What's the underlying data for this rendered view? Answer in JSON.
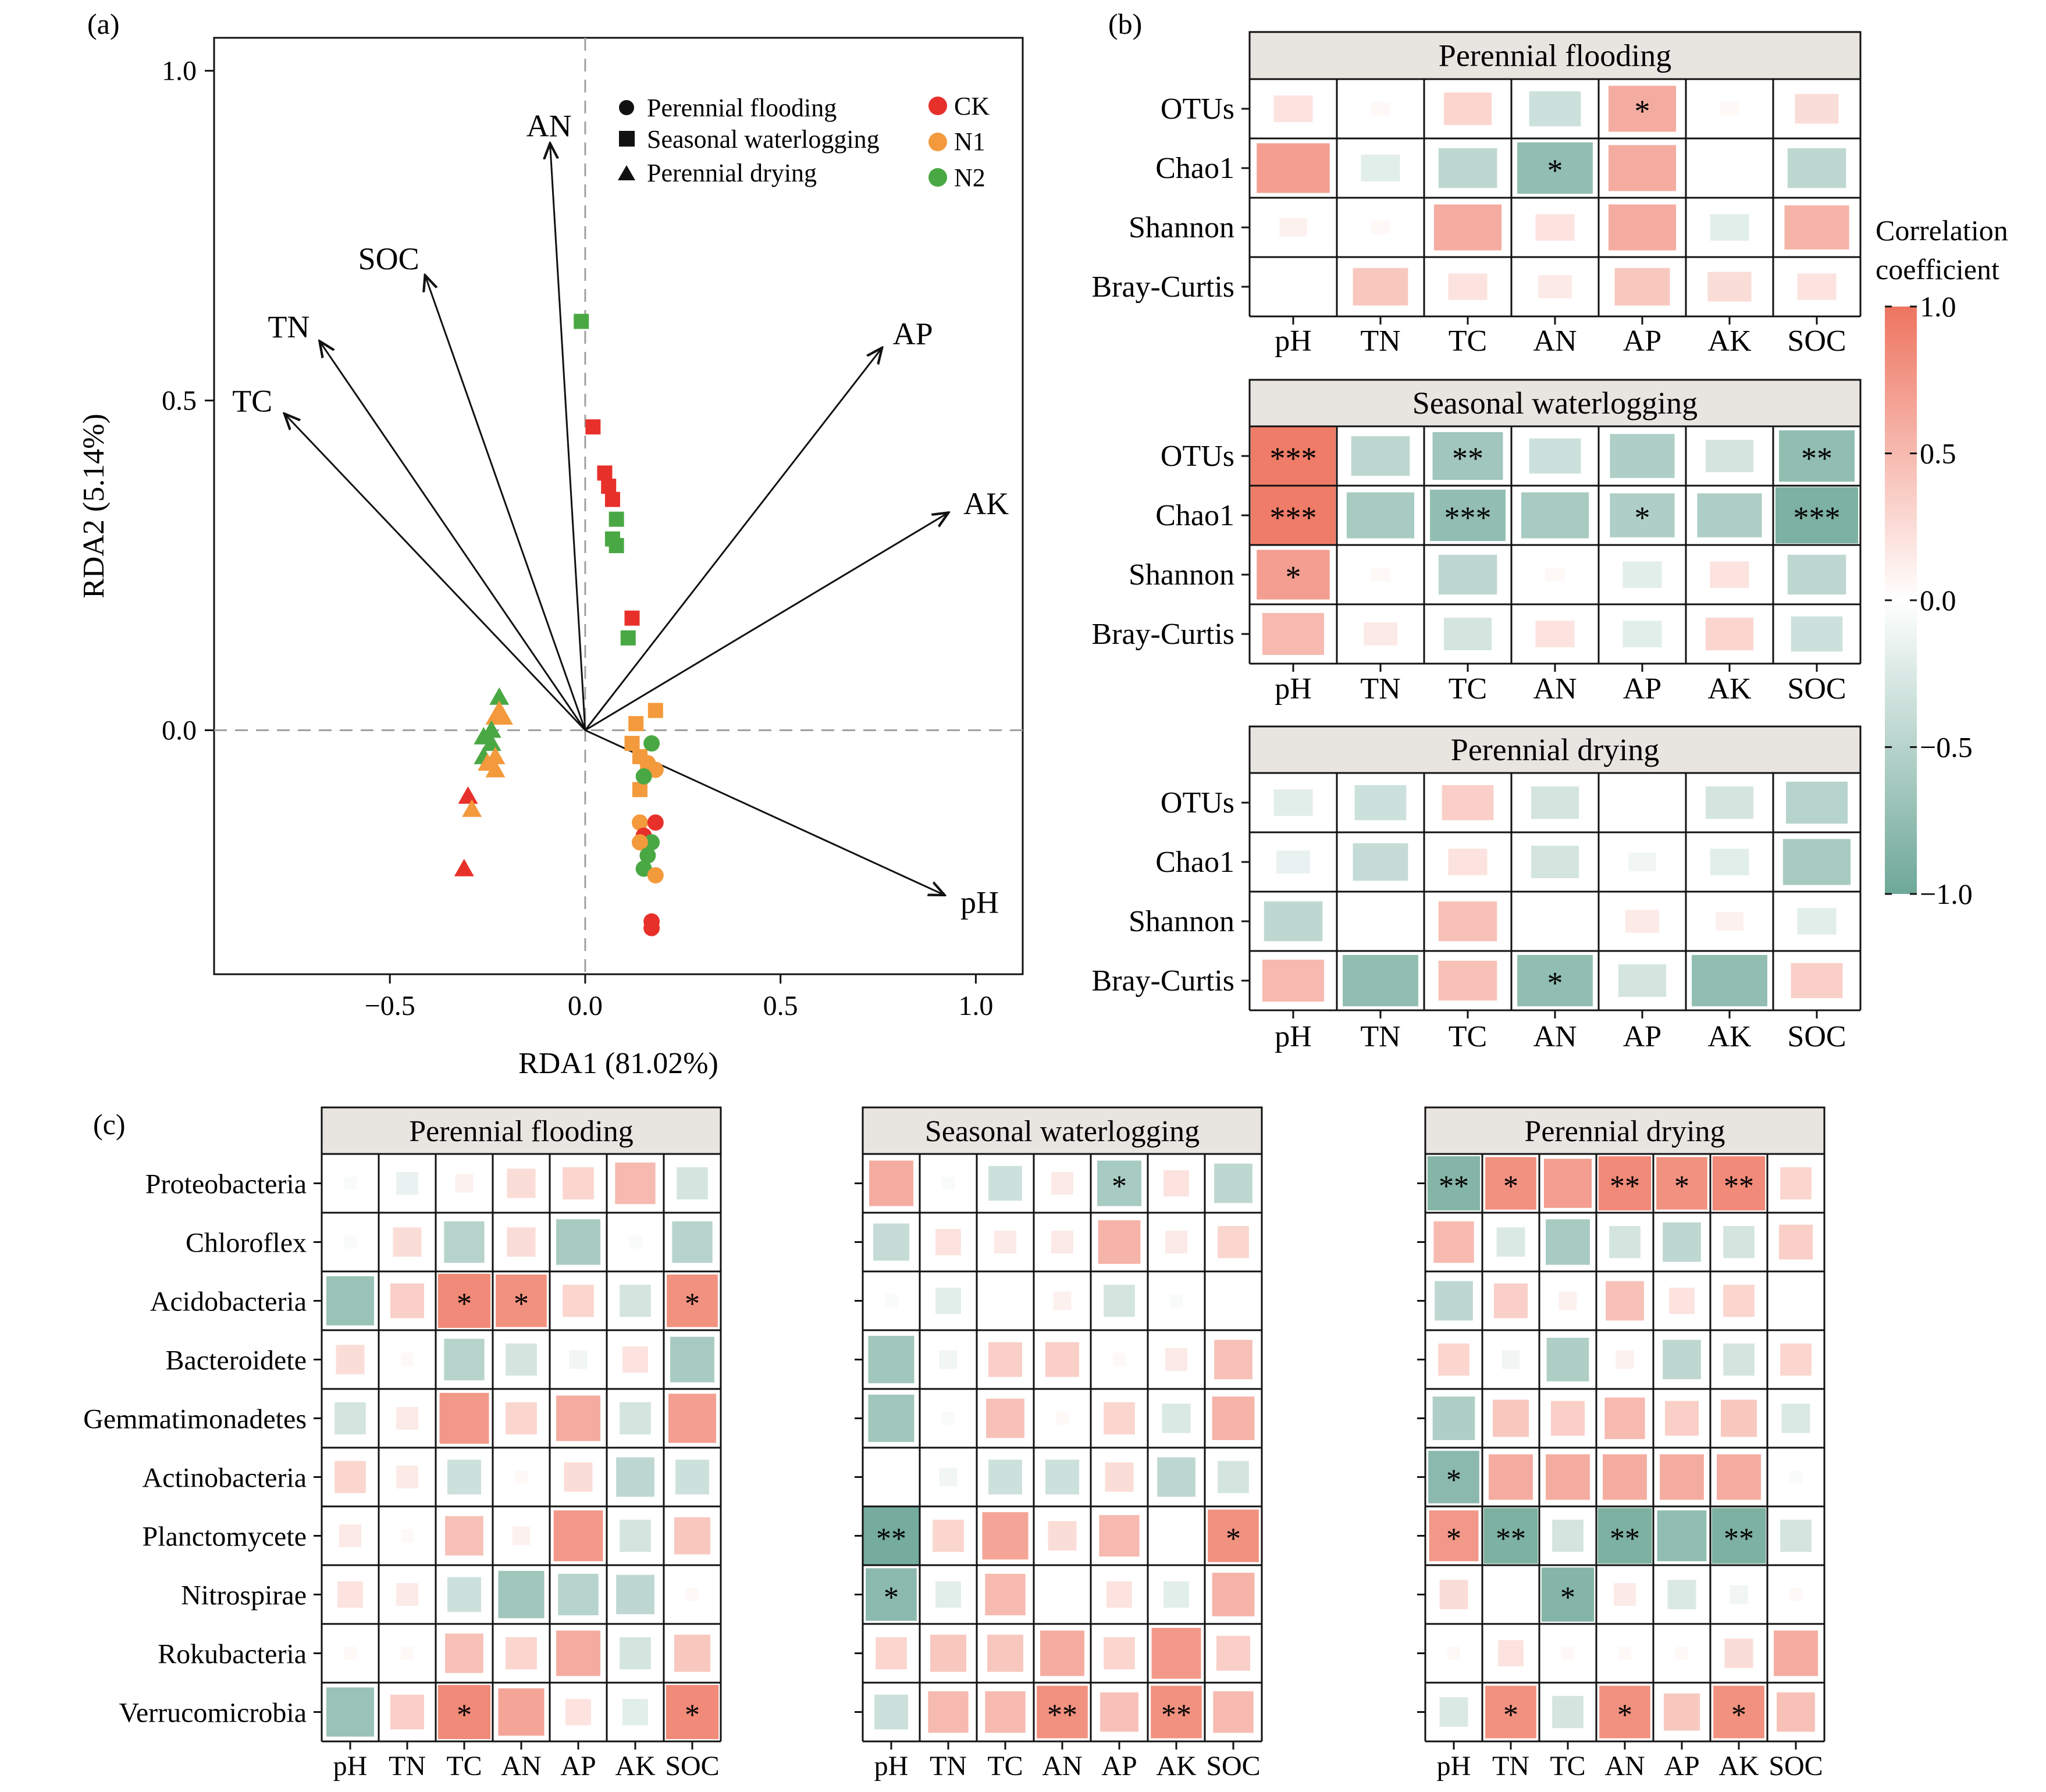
{
  "panel_labels": {
    "a": "(a)",
    "b": "(b)",
    "c": "(c)"
  },
  "colors": {
    "ck": "#e8302a",
    "n1": "#f39a3c",
    "n2": "#4aa844",
    "pos": "#ee7560",
    "neg": "#6ea898",
    "strip_bg": "#e8e4e0",
    "dashed": "#a0a0a0"
  },
  "rda": {
    "xlabel": "RDA1 (81.02%)",
    "ylabel": "RDA2 (5.14%)",
    "xlim": [
      -0.95,
      1.12
    ],
    "ylim": [
      -0.37,
      1.05
    ],
    "xticks": [
      -0.5,
      0.0,
      0.5,
      1.0
    ],
    "xtick_labels": [
      "−0.5",
      "0.0",
      "0.5",
      "1.0"
    ],
    "yticks": [
      0.0,
      0.5,
      1.0
    ],
    "ytick_labels": [
      "0.0",
      "0.5",
      "1.0"
    ],
    "arrows": [
      {
        "label": "AN",
        "x": -0.09,
        "y": 0.89
      },
      {
        "label": "SOC",
        "x": -0.41,
        "y": 0.69
      },
      {
        "label": "TN",
        "x": -0.68,
        "y": 0.59
      },
      {
        "label": "TC",
        "x": -0.77,
        "y": 0.48
      },
      {
        "label": "AP",
        "x": 0.76,
        "y": 0.58
      },
      {
        "label": "AK",
        "x": 0.93,
        "y": 0.33
      },
      {
        "label": "pH",
        "x": 0.92,
        "y": -0.25
      }
    ],
    "legend_shapes": [
      {
        "shape": "circle",
        "label": "Perennial flooding"
      },
      {
        "shape": "square",
        "label": "Seasonal waterlogging"
      },
      {
        "shape": "triangle",
        "label": "Perennial drying"
      }
    ],
    "legend_groups": [
      {
        "label": "CK",
        "color": "ck"
      },
      {
        "label": "N1",
        "color": "n1"
      },
      {
        "label": "N2",
        "color": "n2"
      }
    ],
    "points": [
      {
        "x": -0.01,
        "y": 0.62,
        "shape": "square",
        "group": "N2"
      },
      {
        "x": 0.02,
        "y": 0.46,
        "shape": "square",
        "group": "CK"
      },
      {
        "x": 0.05,
        "y": 0.39,
        "shape": "square",
        "group": "CK"
      },
      {
        "x": 0.06,
        "y": 0.37,
        "shape": "square",
        "group": "CK"
      },
      {
        "x": 0.07,
        "y": 0.35,
        "shape": "square",
        "group": "CK"
      },
      {
        "x": 0.08,
        "y": 0.32,
        "shape": "square",
        "group": "N2"
      },
      {
        "x": 0.07,
        "y": 0.29,
        "shape": "square",
        "group": "N2"
      },
      {
        "x": 0.08,
        "y": 0.28,
        "shape": "square",
        "group": "N2"
      },
      {
        "x": 0.12,
        "y": 0.17,
        "shape": "square",
        "group": "CK"
      },
      {
        "x": 0.11,
        "y": 0.14,
        "shape": "square",
        "group": "N2"
      },
      {
        "x": 0.18,
        "y": 0.03,
        "shape": "square",
        "group": "N1"
      },
      {
        "x": 0.13,
        "y": 0.01,
        "shape": "square",
        "group": "N1"
      },
      {
        "x": 0.12,
        "y": -0.02,
        "shape": "square",
        "group": "N1"
      },
      {
        "x": 0.14,
        "y": -0.04,
        "shape": "square",
        "group": "N1"
      },
      {
        "x": 0.16,
        "y": -0.06,
        "shape": "square",
        "group": "N1"
      },
      {
        "x": 0.14,
        "y": -0.09,
        "shape": "square",
        "group": "N1"
      },
      {
        "x": 0.17,
        "y": -0.02,
        "shape": "circle",
        "group": "N2"
      },
      {
        "x": 0.16,
        "y": -0.05,
        "shape": "circle",
        "group": "N1"
      },
      {
        "x": 0.18,
        "y": -0.06,
        "shape": "circle",
        "group": "N1"
      },
      {
        "x": 0.15,
        "y": -0.07,
        "shape": "circle",
        "group": "N2"
      },
      {
        "x": 0.14,
        "y": -0.14,
        "shape": "circle",
        "group": "N1"
      },
      {
        "x": 0.18,
        "y": -0.14,
        "shape": "circle",
        "group": "CK"
      },
      {
        "x": 0.15,
        "y": -0.16,
        "shape": "circle",
        "group": "CK"
      },
      {
        "x": 0.17,
        "y": -0.17,
        "shape": "circle",
        "group": "N2"
      },
      {
        "x": 0.14,
        "y": -0.17,
        "shape": "circle",
        "group": "N1"
      },
      {
        "x": 0.16,
        "y": -0.19,
        "shape": "circle",
        "group": "N2"
      },
      {
        "x": 0.15,
        "y": -0.21,
        "shape": "circle",
        "group": "N2"
      },
      {
        "x": 0.18,
        "y": -0.22,
        "shape": "circle",
        "group": "N1"
      },
      {
        "x": 0.17,
        "y": -0.29,
        "shape": "circle",
        "group": "CK"
      },
      {
        "x": 0.17,
        "y": -0.3,
        "shape": "circle",
        "group": "CK"
      },
      {
        "x": -0.22,
        "y": 0.05,
        "shape": "triangle",
        "group": "N2"
      },
      {
        "x": -0.22,
        "y": 0.03,
        "shape": "triangle",
        "group": "N1"
      },
      {
        "x": -0.21,
        "y": 0.02,
        "shape": "triangle",
        "group": "N1"
      },
      {
        "x": -0.23,
        "y": 0.02,
        "shape": "triangle",
        "group": "N1"
      },
      {
        "x": -0.24,
        "y": 0.0,
        "shape": "triangle",
        "group": "N2"
      },
      {
        "x": -0.26,
        "y": -0.01,
        "shape": "triangle",
        "group": "N2"
      },
      {
        "x": -0.24,
        "y": -0.02,
        "shape": "triangle",
        "group": "N2"
      },
      {
        "x": -0.26,
        "y": -0.04,
        "shape": "triangle",
        "group": "N2"
      },
      {
        "x": -0.23,
        "y": -0.04,
        "shape": "triangle",
        "group": "N1"
      },
      {
        "x": -0.25,
        "y": -0.05,
        "shape": "triangle",
        "group": "N1"
      },
      {
        "x": -0.23,
        "y": -0.06,
        "shape": "triangle",
        "group": "N1"
      },
      {
        "x": -0.3,
        "y": -0.1,
        "shape": "triangle",
        "group": "CK"
      },
      {
        "x": -0.29,
        "y": -0.12,
        "shape": "triangle",
        "group": "N1"
      },
      {
        "x": -0.31,
        "y": -0.21,
        "shape": "triangle",
        "group": "CK"
      }
    ]
  },
  "colorbar": {
    "title_lines": [
      "Correlation",
      "coefficient"
    ],
    "ticks": [
      1.0,
      0.5,
      0.0,
      -0.5,
      -1.0
    ],
    "tick_labels": [
      "1.0",
      "0.5",
      "0.0",
      "−0.5",
      "−1.0"
    ]
  },
  "chart_data": [
    {
      "type": "heatmap",
      "panel": "b",
      "title": "Perennial flooding",
      "x": [
        "pH",
        "TN",
        "TC",
        "AN",
        "AP",
        "AK",
        "SOC"
      ],
      "y": [
        "OTUs",
        "Chao1",
        "Shannon",
        "Bray-Curtis"
      ],
      "values": [
        [
          0.2,
          0.05,
          0.3,
          -0.35,
          0.6,
          0.05,
          0.25
        ],
        [
          0.7,
          -0.2,
          -0.45,
          -0.75,
          0.6,
          0.0,
          -0.45
        ],
        [
          0.1,
          0.05,
          0.6,
          0.2,
          0.6,
          -0.2,
          0.55
        ],
        [
          0.0,
          0.4,
          0.2,
          0.15,
          0.4,
          0.25,
          0.2
        ]
      ],
      "signif": [
        [
          "",
          "",
          "",
          "",
          "*",
          "",
          ""
        ],
        [
          "",
          "",
          "",
          "*",
          "",
          "",
          ""
        ],
        [
          "",
          "",
          "",
          "",
          "",
          "",
          ""
        ],
        [
          "",
          "",
          "",
          "",
          "",
          "",
          ""
        ]
      ]
    },
    {
      "type": "heatmap",
      "panel": "b",
      "title": "Seasonal waterlogging",
      "x": [
        "pH",
        "TN",
        "TC",
        "AN",
        "AP",
        "AK",
        "SOC"
      ],
      "y": [
        "OTUs",
        "Chao1",
        "Shannon",
        "Bray-Curtis"
      ],
      "values": [
        [
          0.95,
          -0.45,
          -0.65,
          -0.35,
          -0.55,
          -0.3,
          -0.75
        ],
        [
          0.95,
          -0.6,
          -0.75,
          -0.6,
          -0.55,
          -0.55,
          -0.9
        ],
        [
          0.7,
          0.05,
          -0.45,
          0.05,
          -0.2,
          0.2,
          -0.45
        ],
        [
          0.5,
          0.15,
          -0.3,
          0.2,
          -0.2,
          0.3,
          -0.35
        ]
      ],
      "signif": [
        [
          "***",
          "",
          "**",
          "",
          "",
          "",
          "**"
        ],
        [
          "***",
          "",
          "***",
          "",
          "*",
          "",
          "***"
        ],
        [
          "*",
          "",
          "",
          "",
          "",
          "",
          ""
        ],
        [
          "",
          "",
          "",
          "",
          "",
          "",
          ""
        ]
      ]
    },
    {
      "type": "heatmap",
      "panel": "b",
      "title": "Perennial drying",
      "x": [
        "pH",
        "TN",
        "TC",
        "AN",
        "AP",
        "AK",
        "SOC"
      ],
      "y": [
        "OTUs",
        "Chao1",
        "Shannon",
        "Bray-Curtis"
      ],
      "values": [
        [
          -0.2,
          -0.35,
          0.35,
          -0.3,
          0.0,
          -0.3,
          -0.5
        ],
        [
          -0.15,
          -0.4,
          0.2,
          -0.3,
          -0.1,
          -0.2,
          -0.6
        ],
        [
          -0.45,
          0.0,
          0.45,
          0.0,
          0.15,
          0.1,
          -0.2
        ],
        [
          0.5,
          -0.75,
          0.45,
          -0.75,
          -0.3,
          -0.75,
          0.35
        ]
      ],
      "signif": [
        [
          "",
          "",
          "",
          "",
          "",
          "",
          ""
        ],
        [
          "",
          "",
          "",
          "",
          "",
          "",
          ""
        ],
        [
          "",
          "",
          "",
          "",
          "",
          "",
          ""
        ],
        [
          "",
          "",
          "",
          "*",
          "",
          "",
          ""
        ]
      ]
    },
    {
      "type": "heatmap",
      "panel": "c",
      "title": "Perennial flooding",
      "x": [
        "pH",
        "TN",
        "TC",
        "AN",
        "AP",
        "AK",
        "SOC"
      ],
      "y": [
        "Proteobacteria",
        "Chloroflex",
        "Acidobacteria",
        "Bacteroidete",
        "Gemmatimonadetes",
        "Actinobacteria",
        "Planctomycete",
        "Nitrospirae",
        "Rokubacteria",
        "Verrucomicrobia"
      ],
      "values": [
        [
          -0.05,
          -0.15,
          0.1,
          0.25,
          0.3,
          0.5,
          -0.3
        ],
        [
          -0.05,
          0.25,
          -0.5,
          0.25,
          -0.6,
          -0.05,
          -0.5
        ],
        [
          -0.7,
          0.35,
          0.85,
          0.8,
          0.3,
          -0.3,
          0.8
        ],
        [
          0.25,
          0.05,
          -0.5,
          -0.3,
          -0.1,
          0.2,
          -0.6
        ],
        [
          -0.3,
          0.15,
          0.75,
          0.3,
          0.6,
          -0.3,
          0.7
        ],
        [
          0.3,
          0.15,
          -0.35,
          0.05,
          0.25,
          -0.45,
          -0.35
        ],
        [
          0.15,
          0.05,
          0.45,
          0.1,
          0.75,
          -0.3,
          0.4
        ],
        [
          0.2,
          0.15,
          -0.35,
          -0.65,
          -0.5,
          -0.45,
          0.05
        ],
        [
          0.05,
          0.05,
          0.45,
          0.3,
          0.6,
          -0.3,
          0.4
        ],
        [
          -0.7,
          0.35,
          0.85,
          0.65,
          0.2,
          -0.2,
          0.85
        ]
      ],
      "signif": [
        [
          "",
          "",
          "",
          "",
          "",
          "",
          ""
        ],
        [
          "",
          "",
          "",
          "",
          "",
          "",
          ""
        ],
        [
          "",
          "",
          "*",
          "*",
          "",
          "",
          "*"
        ],
        [
          "",
          "",
          "",
          "",
          "",
          "",
          ""
        ],
        [
          "",
          "",
          "",
          "",
          "",
          "",
          ""
        ],
        [
          "",
          "",
          "",
          "",
          "",
          "",
          ""
        ],
        [
          "",
          "",
          "",
          "",
          "",
          "",
          ""
        ],
        [
          "",
          "",
          "",
          "",
          "",
          "",
          ""
        ],
        [
          "",
          "",
          "",
          "",
          "",
          "",
          ""
        ],
        [
          "",
          "",
          "*",
          "",
          "",
          "",
          "*"
        ]
      ]
    },
    {
      "type": "heatmap",
      "panel": "c",
      "title": "Seasonal waterlogging",
      "x": [
        "pH",
        "TN",
        "TC",
        "AN",
        "AP",
        "AK",
        "SOC"
      ],
      "y": [
        "Proteobacteria",
        "Chloroflex",
        "Acidobacteria",
        "Bacteroidete",
        "Gemmatimonadetes",
        "Actinobacteria",
        "Planctomycete",
        "Nitrospirae",
        "Rokubacteria",
        "Verrucomicrobia"
      ],
      "values": [
        [
          0.6,
          -0.05,
          -0.35,
          0.15,
          -0.6,
          0.2,
          -0.45
        ],
        [
          -0.4,
          0.2,
          0.15,
          0.15,
          0.55,
          0.15,
          0.3
        ],
        [
          -0.05,
          -0.2,
          0.0,
          0.1,
          -0.3,
          -0.05,
          0.0
        ],
        [
          -0.65,
          -0.1,
          0.35,
          0.35,
          0.05,
          0.15,
          0.45
        ],
        [
          -0.65,
          -0.05,
          0.45,
          0.05,
          0.3,
          -0.25,
          0.55
        ],
        [
          0.0,
          -0.1,
          -0.35,
          -0.35,
          0.25,
          -0.45,
          -0.3
        ],
        [
          -0.95,
          0.3,
          0.65,
          0.25,
          0.5,
          0.0,
          0.8
        ],
        [
          -0.8,
          -0.2,
          0.5,
          0.0,
          0.2,
          -0.2,
          0.55
        ],
        [
          0.3,
          0.4,
          0.4,
          0.6,
          0.3,
          0.75,
          0.35
        ],
        [
          -0.35,
          0.5,
          0.5,
          0.8,
          0.45,
          0.8,
          0.5
        ]
      ],
      "signif": [
        [
          "",
          "",
          "",
          "",
          "*",
          "",
          ""
        ],
        [
          "",
          "",
          "",
          "",
          "",
          "",
          ""
        ],
        [
          "",
          "",
          "",
          "",
          "",
          "",
          ""
        ],
        [
          "",
          "",
          "",
          "",
          "",
          "",
          ""
        ],
        [
          "",
          "",
          "",
          "",
          "",
          "",
          ""
        ],
        [
          "",
          "",
          "",
          "",
          "",
          "",
          ""
        ],
        [
          "**",
          "",
          "",
          "",
          "",
          "",
          "*"
        ],
        [
          "*",
          "",
          "",
          "",
          "",
          "",
          ""
        ],
        [
          "",
          "",
          "",
          "",
          "",
          "",
          ""
        ],
        [
          "",
          "",
          "",
          "**",
          "",
          "**",
          ""
        ]
      ]
    },
    {
      "type": "heatmap",
      "panel": "c",
      "title": "Perennial drying",
      "x": [
        "pH",
        "TN",
        "TC",
        "AN",
        "AP",
        "AK",
        "SOC"
      ],
      "y": [
        "Proteobacteria",
        "Chloroflex",
        "Acidobacteria",
        "Bacteroidete",
        "Gemmatimonadetes",
        "Actinobacteria",
        "Planctomycete",
        "Nitrospirae",
        "Rokubacteria",
        "Verrucomicrobia"
      ],
      "values": [
        [
          -0.85,
          0.8,
          0.7,
          0.85,
          0.8,
          0.85,
          0.3
        ],
        [
          0.5,
          -0.25,
          -0.6,
          -0.3,
          -0.45,
          -0.3,
          0.35
        ],
        [
          -0.45,
          0.35,
          0.1,
          0.45,
          0.2,
          0.3,
          0.0
        ],
        [
          0.3,
          -0.1,
          -0.55,
          0.1,
          -0.45,
          -0.3,
          0.3
        ],
        [
          -0.55,
          0.4,
          0.35,
          0.5,
          0.35,
          0.4,
          -0.25
        ],
        [
          -0.8,
          0.6,
          0.6,
          0.6,
          0.6,
          0.6,
          -0.05
        ],
        [
          0.75,
          -0.9,
          -0.3,
          -0.9,
          -0.75,
          -0.9,
          -0.3
        ],
        [
          0.25,
          0.0,
          -0.85,
          0.15,
          -0.25,
          -0.1,
          0.05
        ],
        [
          0.05,
          0.2,
          0.05,
          0.05,
          0.05,
          0.25,
          0.6
        ],
        [
          -0.25,
          0.8,
          -0.3,
          0.8,
          0.4,
          0.8,
          0.45
        ]
      ],
      "signif": [
        [
          "**",
          "*",
          "",
          "**",
          "*",
          "**",
          ""
        ],
        [
          "",
          "",
          "",
          "",
          "",
          "",
          ""
        ],
        [
          "",
          "",
          "",
          "",
          "",
          "",
          ""
        ],
        [
          "",
          "",
          "",
          "",
          "",
          "",
          ""
        ],
        [
          "",
          "",
          "",
          "",
          "",
          "",
          ""
        ],
        [
          "*",
          "",
          "",
          "",
          "",
          "",
          ""
        ],
        [
          "*",
          "**",
          "",
          "**",
          "",
          "**",
          ""
        ],
        [
          "",
          "",
          "*",
          "",
          "",
          "",
          ""
        ],
        [
          "",
          "",
          "",
          "",
          "",
          "",
          ""
        ],
        [
          "",
          "*",
          "",
          "*",
          "",
          "*",
          ""
        ]
      ]
    }
  ]
}
